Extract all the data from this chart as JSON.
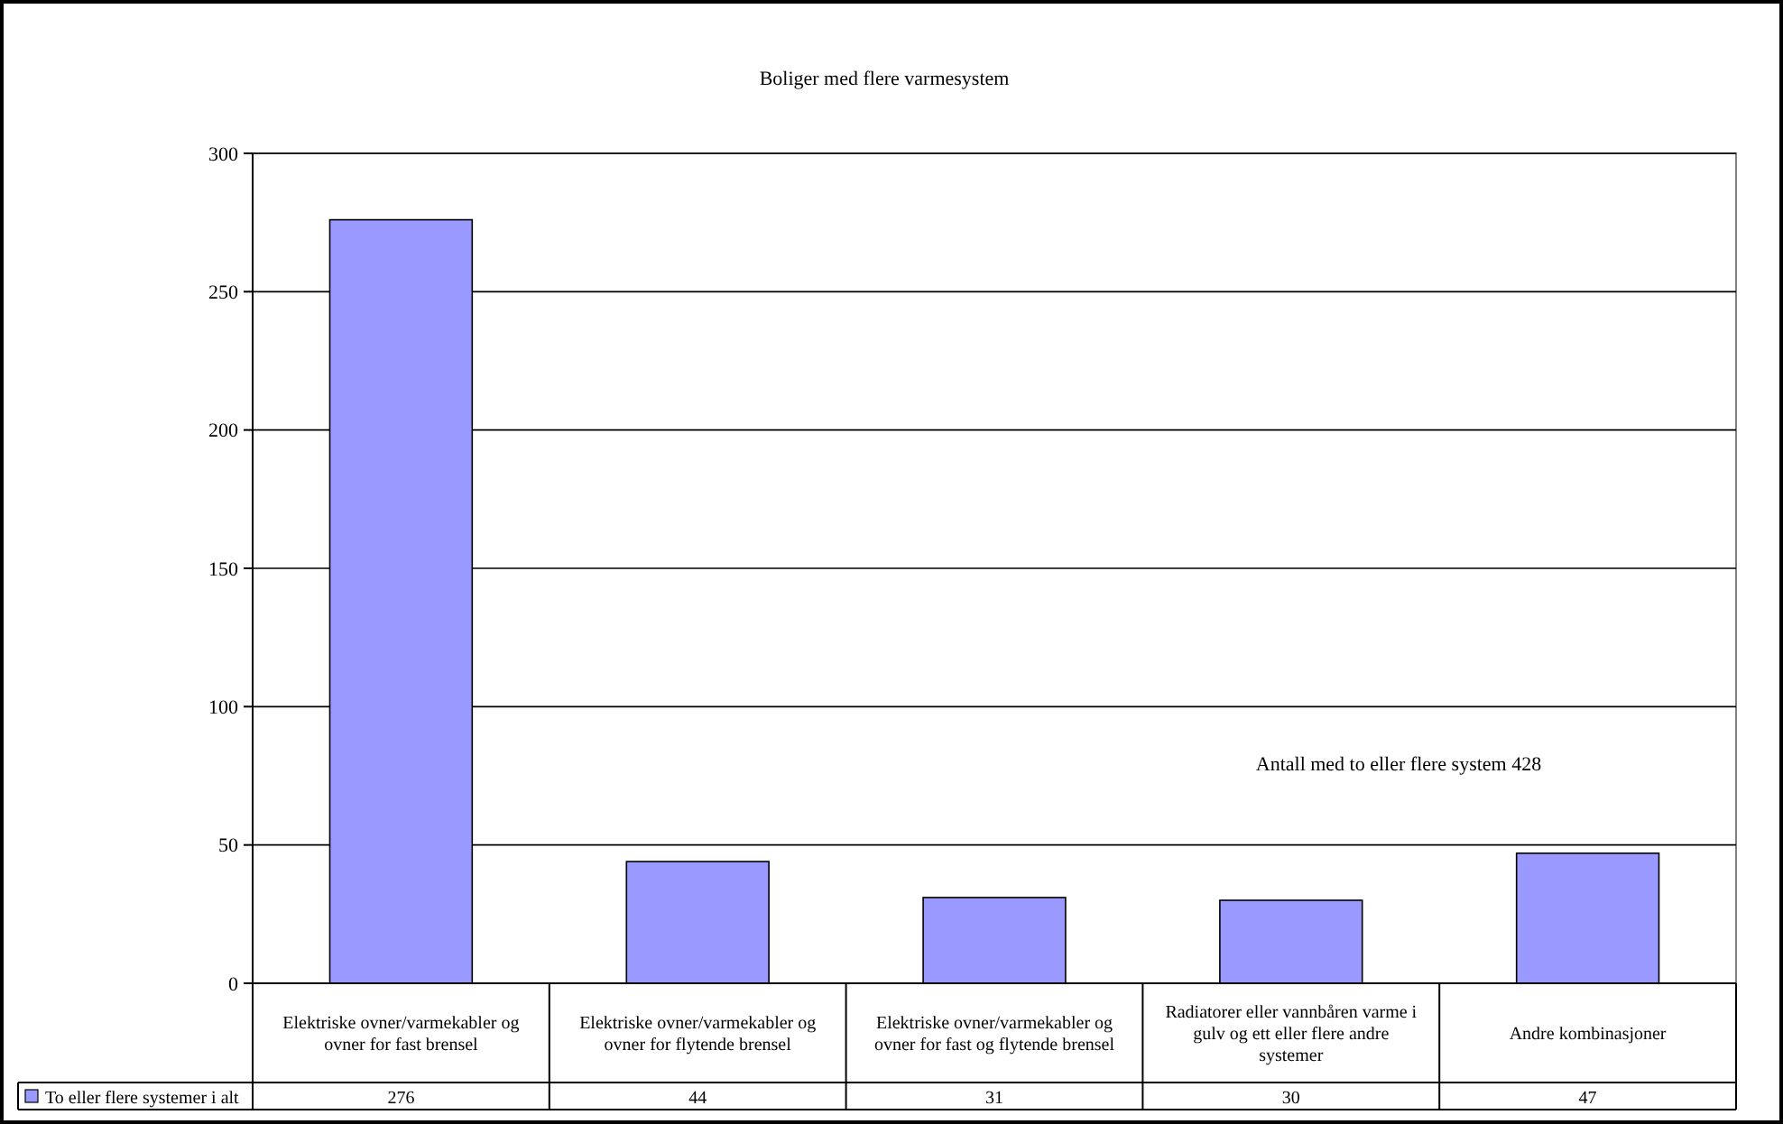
{
  "chart_data": {
    "type": "bar",
    "title": "Boliger med flere varmesystem",
    "categories": [
      "Elektriske ovner/varmekabler og ovner for fast brensel",
      "Elektriske ovner/varmekabler og ovner for flytende brensel",
      "Elektriske ovner/varmekabler og ovner for fast og flytende brensel",
      "Radiatorer eller vannbåren varme i gulv og ett eller flere andre systemer",
      "Andre kombinasjoner"
    ],
    "series": [
      {
        "name": "To eller flere systemer i alt",
        "color": "#9999ff",
        "values": [
          276,
          44,
          31,
          30,
          47
        ]
      }
    ],
    "ylim": [
      0,
      300
    ],
    "yticks": [
      0,
      50,
      100,
      150,
      200,
      250,
      300
    ],
    "grid": "y",
    "legend": "bottom",
    "data_labels": true,
    "annotations": [
      "Antall med to eller flere system 428"
    ]
  }
}
